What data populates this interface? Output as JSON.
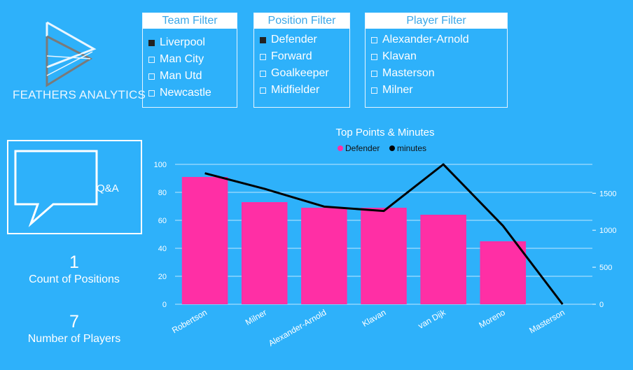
{
  "logo": {
    "text": "FEATHERS ANALYTICS",
    "icon": "play-triangle-logo"
  },
  "team_filter": {
    "title": "Team Filter",
    "items": [
      {
        "label": "Liverpool",
        "checked": true
      },
      {
        "label": "Man City",
        "checked": false
      },
      {
        "label": "Man Utd",
        "checked": false
      },
      {
        "label": "Newcastle",
        "checked": false
      }
    ]
  },
  "position_filter": {
    "title": "Position Filter",
    "items": [
      {
        "label": "Defender",
        "checked": true
      },
      {
        "label": "Forward",
        "checked": false
      },
      {
        "label": "Goalkeeper",
        "checked": false
      },
      {
        "label": "Midfielder",
        "checked": false
      }
    ]
  },
  "player_filter": {
    "title": "Player Filter",
    "items": [
      {
        "label": "Alexander-Arnold",
        "checked": false
      },
      {
        "label": "Klavan",
        "checked": false
      },
      {
        "label": "Masterson",
        "checked": false
      },
      {
        "label": "Milner",
        "checked": false
      }
    ]
  },
  "qa": {
    "label": "Q&A",
    "icon": "speech-bubble-icon"
  },
  "kpis": [
    {
      "value": "1",
      "label": "Count of Positions"
    },
    {
      "value": "7",
      "label": "Number of Players"
    }
  ],
  "colors": {
    "background": "#2eb1fa",
    "bar": "#ff2fa5",
    "line": "#000000"
  },
  "chart_data": {
    "type": "bar",
    "title": "Top Points & Minutes",
    "categories": [
      "Robertson",
      "Milner",
      "Alexander-Arnold",
      "Klavan",
      "van Dijk",
      "Moreno",
      "Masterson"
    ],
    "series": [
      {
        "name": "Defender",
        "type": "bar",
        "axis": "left",
        "values": [
          91,
          73,
          69,
          69,
          64,
          45,
          0
        ]
      },
      {
        "name": "minutes",
        "type": "line",
        "axis": "right",
        "values": [
          1770,
          1560,
          1320,
          1260,
          1890,
          1060,
          0
        ]
      }
    ],
    "ylim_left": [
      0,
      100
    ],
    "yticks_left": [
      0,
      20,
      40,
      60,
      80,
      100
    ],
    "ylim_right": [
      0,
      1890
    ],
    "yticks_right": [
      0,
      500,
      1000,
      1500
    ],
    "legend_position": "top-center",
    "grid": true
  }
}
